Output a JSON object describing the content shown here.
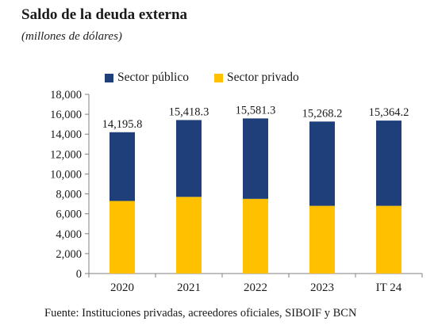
{
  "title": "Saldo de la deuda externa",
  "subtitle": "(millones de dólares)",
  "source": "Fuente: Instituciones privadas, acreedores oficiales, SIBOIF y BCN",
  "colors": {
    "publico": "#1f3f7a",
    "privado": "#ffc000"
  },
  "chart_data": {
    "type": "bar",
    "stacked": true,
    "categories": [
      "2020",
      "2021",
      "2022",
      "2023",
      "IT 24"
    ],
    "series": [
      {
        "name": "Sector público",
        "values": [
          6905.8,
          7718.3,
          8081.3,
          8468.2,
          8564.2
        ]
      },
      {
        "name": "Sector privado",
        "values": [
          7290.0,
          7700.0,
          7500.0,
          6800.0,
          6800.0
        ]
      }
    ],
    "totals": [
      14195.8,
      15418.3,
      15581.3,
      15268.2,
      15364.2
    ],
    "total_labels": [
      "14,195.8",
      "15,418.3",
      "15,581.3",
      "15,268.2",
      "15,364.2"
    ],
    "yticks": [
      0,
      2000,
      4000,
      6000,
      8000,
      10000,
      12000,
      14000,
      16000,
      18000
    ],
    "ytick_labels": [
      "0",
      "2,000",
      "4,000",
      "6,000",
      "8,000",
      "10,000",
      "12,000",
      "14,000",
      "16,000",
      "18,000"
    ],
    "ylim": [
      0,
      18000
    ],
    "legend_position": "top",
    "grid": false
  }
}
